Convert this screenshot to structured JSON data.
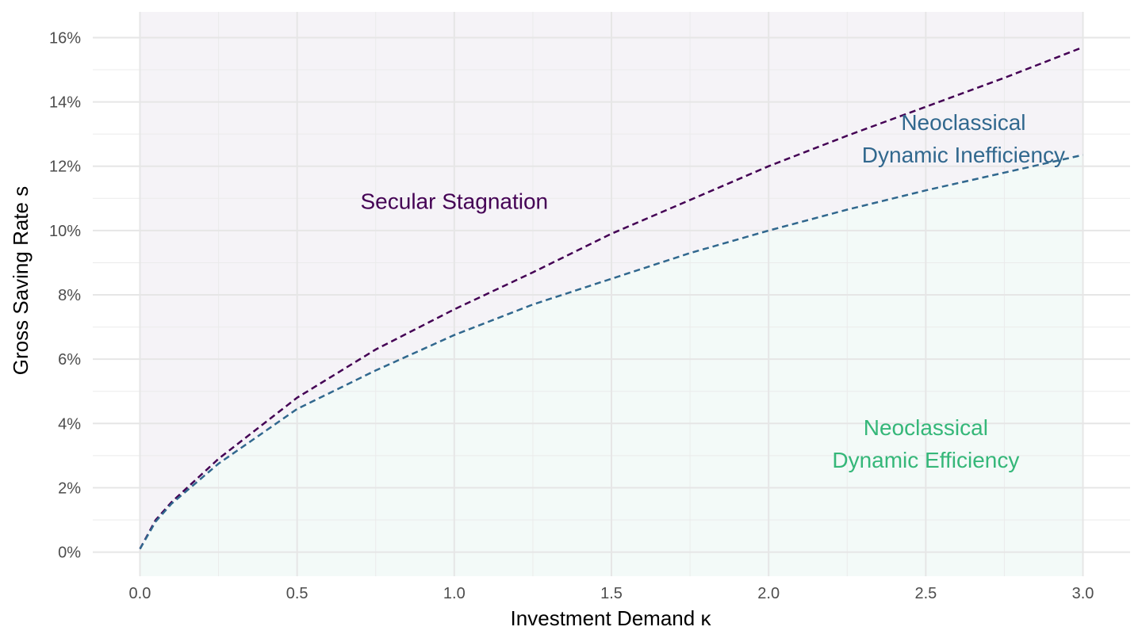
{
  "chart_data": {
    "type": "area",
    "xlabel": "Investment Demand κ",
    "ylabel": "Gross Saving Rate s",
    "xlim": [
      -0.15,
      3.15
    ],
    "ylim": [
      -0.0075,
      0.168
    ],
    "x_ticks": [
      0.0,
      0.5,
      1.0,
      1.5,
      2.0,
      2.5,
      3.0
    ],
    "x_tick_labels": [
      "0.0",
      "0.5",
      "1.0",
      "1.5",
      "2.0",
      "2.5",
      "3.0"
    ],
    "y_ticks": [
      0,
      0.02,
      0.04,
      0.06,
      0.08,
      0.1,
      0.12,
      0.14,
      0.16
    ],
    "y_tick_labels": [
      "0%",
      "2%",
      "4%",
      "6%",
      "8%",
      "10%",
      "12%",
      "14%",
      "16%"
    ],
    "grid": true,
    "colors": {
      "upper_line": "#440154",
      "lower_line": "#31688e",
      "upper_fill": "#f5f3f7",
      "lower_fill": "#f3faf8",
      "region_stagnation": "#440154",
      "region_inefficiency": "#31688e",
      "region_efficiency": "#35b779"
    },
    "series": [
      {
        "line": "dashed",
        "x": [
          0.0,
          0.05,
          0.1,
          0.25,
          0.5,
          0.75,
          1.0,
          1.25,
          1.5,
          1.75,
          2.0,
          2.25,
          2.5,
          2.75,
          3.0
        ],
        "y": [
          0.001,
          0.01,
          0.0155,
          0.029,
          0.048,
          0.063,
          0.0755,
          0.087,
          0.099,
          0.1095,
          0.12,
          0.1295,
          0.1385,
          0.1475,
          0.157
        ]
      },
      {
        "line": "dashed",
        "x": [
          0.0,
          0.05,
          0.1,
          0.25,
          0.5,
          0.75,
          1.0,
          1.25,
          1.5,
          1.75,
          2.0,
          2.25,
          2.5,
          2.75,
          3.0
        ],
        "y": [
          0.001,
          0.0095,
          0.015,
          0.0275,
          0.0445,
          0.0565,
          0.0675,
          0.077,
          0.085,
          0.093,
          0.1,
          0.1065,
          0.1125,
          0.118,
          0.1235
        ]
      }
    ],
    "annotations": [
      {
        "lines": [
          "Secular Stagnation"
        ],
        "x": 1.0,
        "y": 0.109,
        "color_key": "region_stagnation"
      },
      {
        "lines": [
          "Neoclassical",
          "Dynamic Inefficiency"
        ],
        "x": 2.62,
        "y": 0.1285,
        "color_key": "region_inefficiency"
      },
      {
        "lines": [
          "Neoclassical",
          "Dynamic Efficiency"
        ],
        "x": 2.5,
        "y": 0.0335,
        "color_key": "region_efficiency"
      }
    ]
  }
}
